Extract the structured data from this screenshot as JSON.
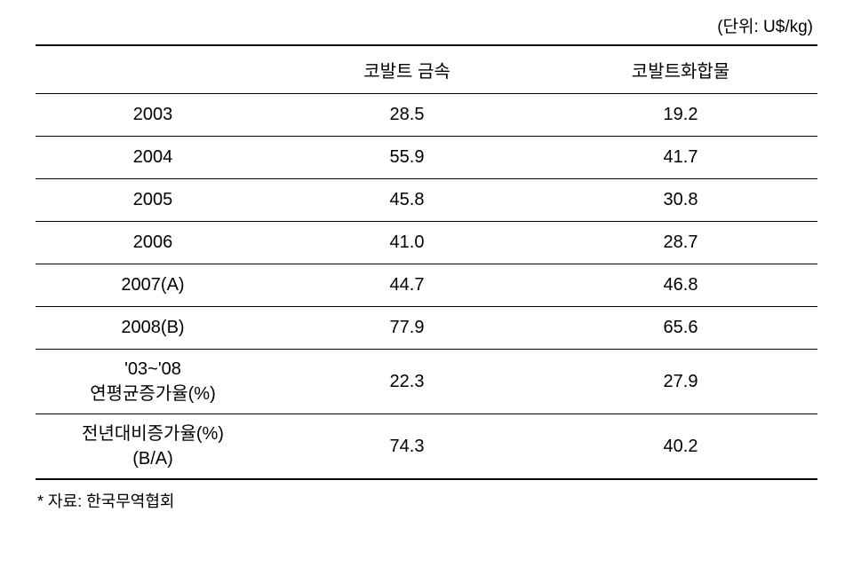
{
  "table": {
    "unit_label": "(단위: U$/kg)",
    "columns": [
      "",
      "코발트 금속",
      "코발트화합물"
    ],
    "rows": [
      {
        "label": "2003",
        "metal": "28.5",
        "compound": "19.2"
      },
      {
        "label": "2004",
        "metal": "55.9",
        "compound": "41.7"
      },
      {
        "label": "2005",
        "metal": "45.8",
        "compound": "30.8"
      },
      {
        "label": "2006",
        "metal": "41.0",
        "compound": "28.7"
      },
      {
        "label": "2007(A)",
        "metal": "44.7",
        "compound": "46.8"
      },
      {
        "label": "2008(B)",
        "metal": "77.9",
        "compound": "65.6"
      },
      {
        "label": "'03~'08\n연평균증가율(%)",
        "metal": "22.3",
        "compound": "27.9"
      },
      {
        "label": "전년대비증가율(%)\n(B/A)",
        "metal": "74.3",
        "compound": "40.2"
      }
    ],
    "source": "* 자료:  한국무역협회",
    "styles": {
      "font_family": "Malgun Gothic",
      "font_size_cell": 20,
      "font_size_unit": 19,
      "font_size_source": 18,
      "border_color": "#000000",
      "background_color": "#ffffff",
      "header_border_top_width": 2,
      "row_border_width": 1,
      "last_row_border_width": 2,
      "column_widths_pct": [
        30,
        35,
        35
      ]
    }
  }
}
